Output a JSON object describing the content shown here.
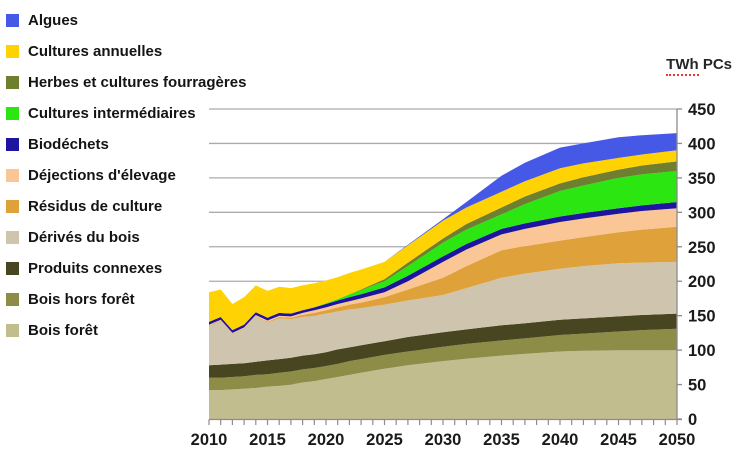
{
  "chart_data": {
    "type": "area",
    "stacked": true,
    "title": "TWh PCs",
    "unit_label": {
      "underlined": "TWh",
      "rest": "PCs"
    },
    "x_range": [
      2010,
      2050
    ],
    "ylim": [
      0,
      450
    ],
    "y_ticks": [
      0,
      50,
      100,
      150,
      200,
      250,
      300,
      350,
      400,
      450
    ],
    "x_ticks": [
      2010,
      2015,
      2020,
      2025,
      2030,
      2035,
      2040,
      2045,
      2050
    ],
    "grid": "horizontal",
    "legend_position": "top-left",
    "colors": {
      "gridline": "#ababab",
      "axis": "#8c8c8c",
      "text": "#1a1a1a",
      "title_underline": "#f53333"
    },
    "years": [
      2010,
      2011,
      2012,
      2013,
      2014,
      2015,
      2016,
      2017,
      2018,
      2019,
      2020,
      2021,
      2022,
      2023,
      2025,
      2027,
      2030,
      2032,
      2035,
      2037,
      2040,
      2042,
      2045,
      2047,
      2050
    ],
    "series": [
      {
        "name": "Bois forêt",
        "color": "#c2bd8e",
        "values": [
          42,
          42,
          43,
          44,
          45,
          47,
          48,
          50,
          53,
          55,
          58,
          61,
          64,
          67,
          73,
          78,
          84,
          87.5,
          92,
          94.5,
          98,
          99,
          100,
          100,
          100
        ]
      },
      {
        "name": "Bois hors forêt",
        "color": "#8e8d48",
        "values": [
          18,
          18,
          18,
          18,
          19,
          18,
          19,
          19,
          19,
          19,
          19,
          19,
          20,
          20,
          20,
          20,
          21,
          21.5,
          22,
          22.5,
          24,
          25,
          27,
          29,
          31
        ]
      },
      {
        "name": "Produits connexes",
        "color": "#474620",
        "values": [
          18,
          19,
          19,
          19,
          19,
          20,
          20,
          20,
          20,
          20,
          20,
          21,
          20,
          20,
          20,
          21,
          21,
          21,
          22,
          22,
          22,
          22,
          22,
          22,
          22
        ]
      },
      {
        "name": "Dérivés du bois",
        "color": "#cfc5ae",
        "values": [
          57,
          63,
          43,
          50,
          65,
          55,
          59,
          56,
          56,
          56,
          56,
          55,
          55,
          54,
          53,
          53,
          54,
          60,
          69,
          72,
          74,
          76,
          77,
          76,
          75
        ]
      },
      {
        "name": "Résidus de culture",
        "color": "#dfa23b",
        "values": [
          1,
          1,
          1,
          1,
          1,
          1,
          2,
          2,
          3,
          4,
          5,
          6,
          7,
          8,
          11,
          16,
          25,
          32,
          40,
          40,
          41,
          42,
          45,
          48,
          51
        ]
      },
      {
        "name": "Déjections d'élevage",
        "color": "#fac695",
        "values": [
          1,
          1,
          1,
          1,
          2,
          2,
          2,
          2,
          3,
          4,
          4,
          5,
          5,
          6,
          7,
          12,
          23,
          24,
          23,
          25,
          27,
          27,
          27,
          27,
          27
        ]
      },
      {
        "name": "Biodéchets",
        "color": "#1d14a0",
        "values": [
          4,
          4,
          4,
          4,
          4,
          4,
          4,
          4,
          4,
          4,
          5,
          5,
          6,
          6,
          7,
          8,
          8,
          8,
          8,
          8,
          8,
          8,
          8,
          8,
          9
        ]
      },
      {
        "name": "Cultures intermédiaires",
        "color": "#2be611",
        "values": [
          0,
          0,
          0,
          0,
          0,
          0,
          0,
          0,
          0,
          0,
          1,
          2,
          4,
          6,
          9,
          14,
          20,
          21,
          21,
          28,
          37,
          40,
          44,
          45,
          45
        ]
      },
      {
        "name": "Herbes et cultures fourragères",
        "color": "#6e7f2f",
        "values": [
          0,
          0,
          0,
          0,
          0,
          0,
          0,
          0,
          0,
          0,
          0,
          0,
          0,
          1,
          3,
          5,
          6,
          8,
          10,
          11,
          11,
          12,
          12,
          13,
          14
        ]
      },
      {
        "name": "Cultures annuelles",
        "color": "#ffd203",
        "values": [
          43,
          40,
          38,
          40,
          39,
          39,
          38,
          37,
          36,
          35,
          33,
          32,
          31,
          29,
          25,
          25,
          26,
          24,
          23,
          22,
          22,
          20,
          17,
          16,
          16
        ]
      },
      {
        "name": "Algues",
        "color": "#4559e6",
        "values": [
          0,
          0,
          0,
          0,
          0,
          0,
          0,
          0,
          0,
          0,
          0,
          0,
          0,
          0,
          0,
          1,
          2,
          8,
          23,
          27,
          30,
          29,
          30,
          28,
          25
        ]
      }
    ]
  }
}
